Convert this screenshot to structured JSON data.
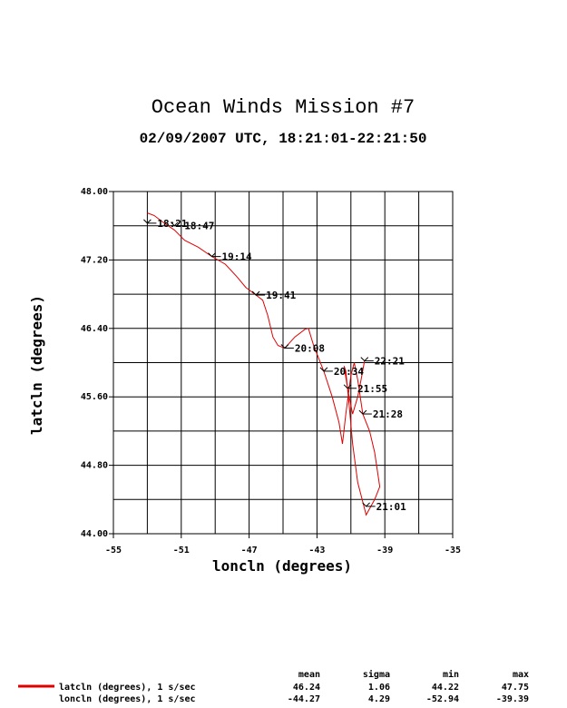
{
  "chart_data": {
    "type": "line",
    "title": "Ocean Winds Mission #7",
    "subtitle": "02/09/2007  UTC, 18:21:01-22:21:50",
    "xlabel": "loncln (degrees)",
    "ylabel": "latcln (degrees)",
    "xlim": [
      -55,
      -35
    ],
    "ylim": [
      44.0,
      48.0
    ],
    "x_ticks": [
      "-55",
      "-51",
      "-47",
      "-43",
      "-39",
      "-35"
    ],
    "y_ticks": [
      "48.00",
      "47.20",
      "46.40",
      "45.60",
      "44.80",
      "44.00"
    ],
    "grid": true,
    "series": [
      {
        "color": "#e00000",
        "points": [
          [
            -53.0,
            47.75
          ],
          [
            -52.6,
            47.72
          ],
          [
            -52.0,
            47.63
          ],
          [
            -51.4,
            47.55
          ],
          [
            -50.8,
            47.43
          ],
          [
            -50.0,
            47.35
          ],
          [
            -49.2,
            47.24
          ],
          [
            -48.4,
            47.15
          ],
          [
            -47.7,
            47.0
          ],
          [
            -47.2,
            46.88
          ],
          [
            -46.6,
            46.79
          ],
          [
            -46.2,
            46.73
          ],
          [
            -45.9,
            46.55
          ],
          [
            -45.6,
            46.3
          ],
          [
            -45.3,
            46.2
          ],
          [
            -44.9,
            46.17
          ],
          [
            -44.3,
            46.3
          ],
          [
            -43.7,
            46.39
          ],
          [
            -43.5,
            46.4
          ],
          [
            -43.2,
            46.2
          ],
          [
            -42.6,
            45.9
          ],
          [
            -42.1,
            45.6
          ],
          [
            -41.7,
            45.3
          ],
          [
            -41.5,
            45.05
          ],
          [
            -41.3,
            45.4
          ],
          [
            -41.0,
            45.85
          ],
          [
            -40.8,
            46.0
          ],
          [
            -40.6,
            45.8
          ],
          [
            -40.3,
            45.4
          ],
          [
            -39.9,
            45.2
          ],
          [
            -39.6,
            44.95
          ],
          [
            -39.3,
            44.55
          ],
          [
            -39.6,
            44.4
          ],
          [
            -40.1,
            44.22
          ],
          [
            -40.6,
            44.6
          ],
          [
            -40.9,
            45.05
          ],
          [
            -41.1,
            45.5
          ],
          [
            -41.3,
            45.9
          ],
          [
            -41.4,
            45.96
          ],
          [
            -41.2,
            45.7
          ],
          [
            -40.9,
            45.4
          ],
          [
            -40.6,
            45.6
          ],
          [
            -40.4,
            45.8
          ],
          [
            -40.2,
            46.02
          ]
        ]
      }
    ],
    "time_labels": [
      {
        "text": "18:21",
        "lon": -53.0,
        "lat": 47.63
      },
      {
        "text": "18:47",
        "lon": -51.4,
        "lat": 47.6
      },
      {
        "text": "19:14",
        "lon": -49.2,
        "lat": 47.24
      },
      {
        "text": "19:41",
        "lon": -46.6,
        "lat": 46.79
      },
      {
        "text": "20:08",
        "lon": -44.9,
        "lat": 46.17
      },
      {
        "text": "20:34",
        "lon": -42.6,
        "lat": 45.9
      },
      {
        "text": "21:55",
        "lon": -41.2,
        "lat": 45.7
      },
      {
        "text": "22:21",
        "lon": -40.2,
        "lat": 46.02
      },
      {
        "text": "21:28",
        "lon": -40.3,
        "lat": 45.4
      },
      {
        "text": "21:01",
        "lon": -40.1,
        "lat": 44.32
      }
    ]
  },
  "stats": {
    "headers": [
      "mean",
      "sigma",
      "min",
      "max"
    ],
    "rows": [
      {
        "label": "latcln (degrees), 1 s/sec",
        "values": [
          "46.24",
          "1.06",
          "44.22",
          "47.75"
        ]
      },
      {
        "label": "loncln (degrees), 1 s/sec",
        "values": [
          "-44.27",
          "4.29",
          "-52.94",
          "-39.39"
        ]
      }
    ],
    "legend_color": "#e00000"
  }
}
